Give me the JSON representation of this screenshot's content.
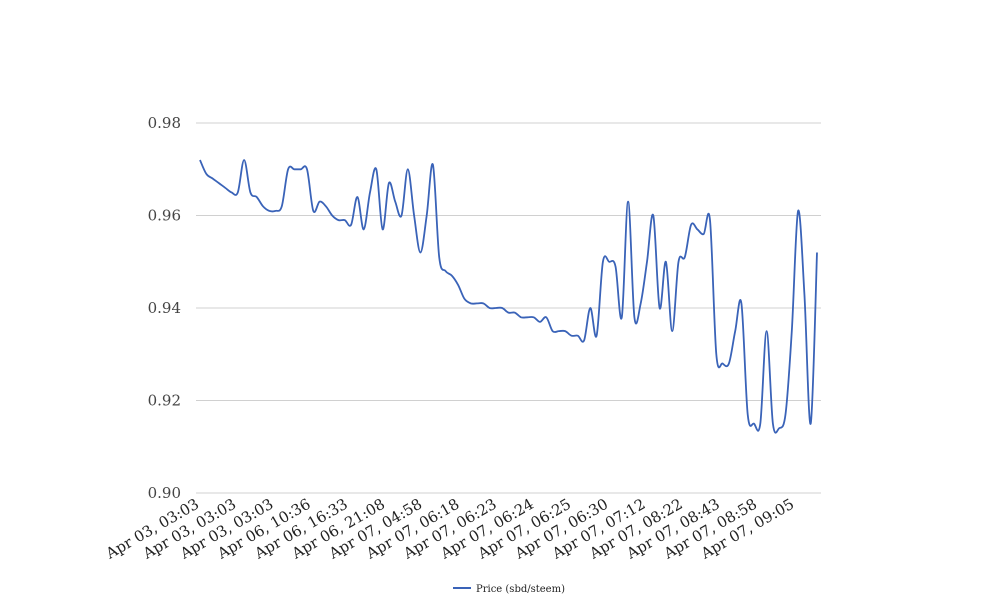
{
  "chart_data": {
    "type": "line",
    "title": "",
    "xlabel": "",
    "ylabel": "",
    "ylim": [
      0.9,
      0.98
    ],
    "y_ticks": [
      "0.90",
      "0.92",
      "0.94",
      "0.96",
      "0.98"
    ],
    "grid": true,
    "legend": {
      "position": "bottom-center"
    },
    "x_tick_labels": [
      "Apr 03, 03:03",
      "Apr 03, 03:03",
      "Apr 03, 03:03",
      "Apr 06, 10:36",
      "Apr 06, 16:33",
      "Apr 06, 21:08",
      "Apr 07, 04:58",
      "Apr 07, 06:18",
      "Apr 07, 06:23",
      "Apr 07, 06:24",
      "Apr 07, 06:25",
      "Apr 07, 06:30",
      "Apr 07, 07:12",
      "Apr 07, 08:22",
      "Apr 07, 08:43",
      "Apr 07, 08:58",
      "Apr 07, 09:05"
    ],
    "series": [
      {
        "name": "Price (sbd/steem)",
        "color": "#3a63b8",
        "values": [
          0.972,
          0.969,
          0.968,
          0.967,
          0.966,
          0.965,
          0.965,
          0.972,
          0.965,
          0.964,
          0.962,
          0.961,
          0.961,
          0.962,
          0.97,
          0.97,
          0.97,
          0.97,
          0.961,
          0.963,
          0.962,
          0.96,
          0.959,
          0.959,
          0.958,
          0.964,
          0.957,
          0.965,
          0.97,
          0.957,
          0.967,
          0.963,
          0.96,
          0.97,
          0.96,
          0.952,
          0.96,
          0.971,
          0.951,
          0.948,
          0.947,
          0.945,
          0.942,
          0.941,
          0.941,
          0.941,
          0.94,
          0.94,
          0.94,
          0.939,
          0.939,
          0.938,
          0.938,
          0.938,
          0.937,
          0.938,
          0.935,
          0.935,
          0.935,
          0.934,
          0.934,
          0.933,
          0.94,
          0.934,
          0.95,
          0.95,
          0.949,
          0.938,
          0.963,
          0.938,
          0.941,
          0.95,
          0.96,
          0.94,
          0.95,
          0.935,
          0.95,
          0.951,
          0.958,
          0.957,
          0.956,
          0.959,
          0.93,
          0.928,
          0.928,
          0.935,
          0.941,
          0.917,
          0.915,
          0.915,
          0.935,
          0.915,
          0.914,
          0.917,
          0.935,
          0.961,
          0.943,
          0.915,
          0.952
        ]
      }
    ]
  }
}
